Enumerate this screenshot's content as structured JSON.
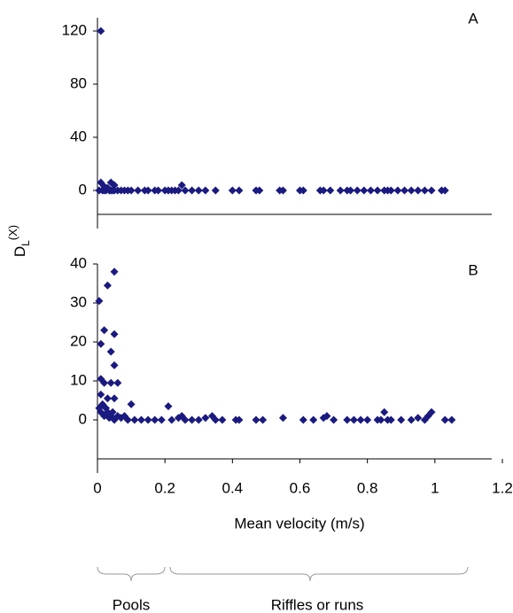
{
  "chart_data": [
    {
      "type": "scatter",
      "label": "A",
      "color": "#1a1a80",
      "ylabel": "D",
      "ylabel_sub": "L",
      "ylabel_sup": "(X)",
      "xlim": [
        0,
        1.2
      ],
      "ylim": [
        -18,
        130
      ],
      "yticks": [
        0,
        40,
        80,
        120
      ],
      "x": [
        0.005,
        0.01,
        0.01,
        0.015,
        0.02,
        0.02,
        0.025,
        0.03,
        0.035,
        0.04,
        0.04,
        0.045,
        0.05,
        0.05,
        0.06,
        0.07,
        0.08,
        0.09,
        0.1,
        0.12,
        0.14,
        0.15,
        0.17,
        0.18,
        0.2,
        0.21,
        0.22,
        0.23,
        0.24,
        0.25,
        0.26,
        0.28,
        0.3,
        0.32,
        0.35,
        0.4,
        0.42,
        0.47,
        0.48,
        0.54,
        0.55,
        0.6,
        0.61,
        0.66,
        0.67,
        0.69,
        0.72,
        0.74,
        0.75,
        0.77,
        0.79,
        0.81,
        0.83,
        0.85,
        0.86,
        0.87,
        0.89,
        0.91,
        0.93,
        0.95,
        0.97,
        0.99,
        1.02,
        1.03
      ],
      "values": [
        0,
        120,
        6,
        0,
        3,
        0,
        0,
        2,
        0,
        6,
        0,
        0,
        4,
        0,
        0,
        0,
        0,
        0,
        0,
        0,
        0,
        0,
        0,
        0,
        0,
        0,
        0,
        0,
        0,
        4,
        0,
        0,
        0,
        0,
        0,
        0,
        0,
        0,
        0,
        0,
        0,
        0,
        0,
        0,
        0,
        0,
        0,
        0,
        0,
        0,
        0,
        0,
        0,
        0,
        0,
        0,
        0,
        0,
        0,
        0,
        0,
        0,
        0,
        0
      ]
    },
    {
      "type": "scatter",
      "label": "B",
      "color": "#1a1a80",
      "xlabel": "Mean velocity (m/s)",
      "annotations": [
        "Pools",
        "Riffles or runs"
      ],
      "xlim": [
        0,
        1.2
      ],
      "ylim": [
        -10,
        40
      ],
      "xticks": [
        0,
        0.2,
        0.4,
        0.6,
        0.8,
        1,
        1.2
      ],
      "yticks": [
        0,
        10,
        20,
        30,
        40
      ],
      "x": [
        0.005,
        0.01,
        0.02,
        0.03,
        0.05,
        0.05,
        0.04,
        0.05,
        0.01,
        0.02,
        0.04,
        0.06,
        0.01,
        0.03,
        0.05,
        0.1,
        0.21,
        0.005,
        0.01,
        0.015,
        0.02,
        0.025,
        0.03,
        0.035,
        0.04,
        0.045,
        0.05,
        0.06,
        0.07,
        0.08,
        0.09,
        0.11,
        0.13,
        0.15,
        0.17,
        0.19,
        0.22,
        0.24,
        0.25,
        0.26,
        0.28,
        0.3,
        0.32,
        0.34,
        0.35,
        0.37,
        0.41,
        0.42,
        0.47,
        0.49,
        0.55,
        0.61,
        0.64,
        0.67,
        0.68,
        0.7,
        0.74,
        0.76,
        0.78,
        0.8,
        0.83,
        0.84,
        0.85,
        0.86,
        0.87,
        0.9,
        0.93,
        0.95,
        0.97,
        0.98,
        0.99,
        1.03,
        1.05
      ],
      "values": [
        30.5,
        19.5,
        23,
        34.5,
        38,
        22,
        17.5,
        14,
        10.5,
        9.5,
        9.5,
        9.5,
        6.5,
        5.5,
        5.5,
        4,
        3.5,
        3,
        2,
        4,
        1,
        3,
        2,
        0.5,
        1,
        2,
        0,
        1,
        0.5,
        1,
        0,
        0,
        0,
        0,
        0,
        0,
        0,
        0.5,
        1,
        0,
        0,
        0,
        0.5,
        1,
        0,
        0,
        0,
        0,
        0,
        0,
        0.5,
        0,
        0,
        0.5,
        1,
        0,
        0,
        0,
        0,
        0,
        0,
        0,
        2,
        0,
        0,
        0,
        0,
        0.5,
        0,
        1,
        2,
        0,
        0
      ]
    }
  ]
}
